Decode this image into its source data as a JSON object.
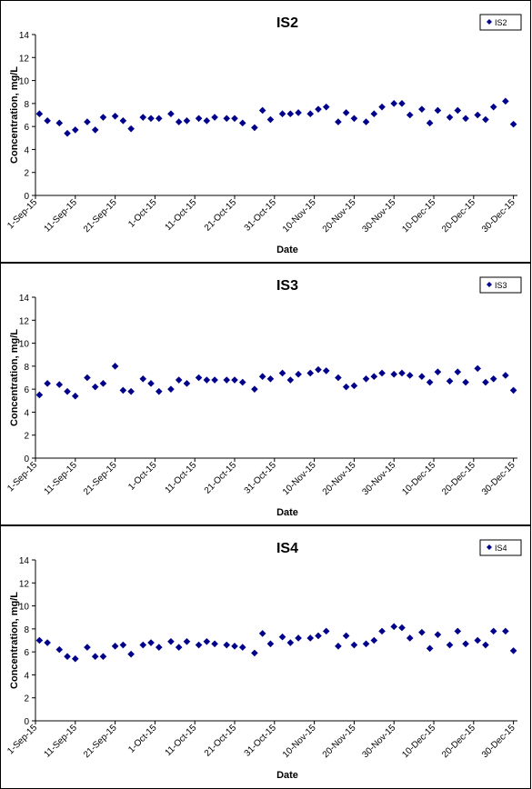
{
  "chart_data": [
    {
      "type": "scatter",
      "title": "IS2",
      "xlabel": "Date",
      "ylabel": "Concentration, mg/L",
      "ylim": [
        0,
        14
      ],
      "yticks": [
        "0",
        "2",
        "4",
        "6",
        "8",
        "10",
        "12",
        "14"
      ],
      "xlim": [
        "2015-09-01",
        "2015-12-31"
      ],
      "xticks": [
        "1-Sep-15",
        "11-Sep-15",
        "21-Sep-15",
        "1-Oct-15",
        "11-Oct-15",
        "21-Oct-15",
        "31-Oct-15",
        "10-Nov-15",
        "20-Nov-15",
        "30-Nov-15",
        "10-Dec-15",
        "20-Dec-15",
        "30-Dec-15"
      ],
      "legend_position": "top-right",
      "series": [
        {
          "name": "IS2",
          "color": "#00008B",
          "marker": "diamond",
          "points": [
            [
              "2015-09-02",
              7.1
            ],
            [
              "2015-09-04",
              6.5
            ],
            [
              "2015-09-07",
              6.3
            ],
            [
              "2015-09-09",
              5.4
            ],
            [
              "2015-09-11",
              5.7
            ],
            [
              "2015-09-14",
              6.4
            ],
            [
              "2015-09-16",
              5.7
            ],
            [
              "2015-09-18",
              6.8
            ],
            [
              "2015-09-21",
              6.9
            ],
            [
              "2015-09-23",
              6.5
            ],
            [
              "2015-09-25",
              5.8
            ],
            [
              "2015-09-28",
              6.8
            ],
            [
              "2015-09-30",
              6.7
            ],
            [
              "2015-10-02",
              6.7
            ],
            [
              "2015-10-05",
              7.1
            ],
            [
              "2015-10-07",
              6.4
            ],
            [
              "2015-10-09",
              6.5
            ],
            [
              "2015-10-12",
              6.7
            ],
            [
              "2015-10-14",
              6.5
            ],
            [
              "2015-10-16",
              6.8
            ],
            [
              "2015-10-19",
              6.7
            ],
            [
              "2015-10-21",
              6.7
            ],
            [
              "2015-10-23",
              6.3
            ],
            [
              "2015-10-26",
              5.9
            ],
            [
              "2015-10-28",
              7.4
            ],
            [
              "2015-10-30",
              6.6
            ],
            [
              "2015-11-02",
              7.1
            ],
            [
              "2015-11-04",
              7.1
            ],
            [
              "2015-11-06",
              7.2
            ],
            [
              "2015-11-09",
              7.1
            ],
            [
              "2015-11-11",
              7.5
            ],
            [
              "2015-11-13",
              7.7
            ],
            [
              "2015-11-16",
              6.4
            ],
            [
              "2015-11-18",
              7.2
            ],
            [
              "2015-11-20",
              6.7
            ],
            [
              "2015-11-23",
              6.4
            ],
            [
              "2015-11-25",
              7.1
            ],
            [
              "2015-11-27",
              7.7
            ],
            [
              "2015-11-30",
              8.0
            ],
            [
              "2015-12-02",
              8.0
            ],
            [
              "2015-12-04",
              7.0
            ],
            [
              "2015-12-07",
              7.5
            ],
            [
              "2015-12-09",
              6.3
            ],
            [
              "2015-12-11",
              7.4
            ],
            [
              "2015-12-14",
              6.8
            ],
            [
              "2015-12-16",
              7.4
            ],
            [
              "2015-12-18",
              6.7
            ],
            [
              "2015-12-21",
              7.0
            ],
            [
              "2015-12-23",
              6.6
            ],
            [
              "2015-12-25",
              7.7
            ],
            [
              "2015-12-28",
              8.2
            ],
            [
              "2015-12-30",
              6.2
            ]
          ]
        }
      ]
    },
    {
      "type": "scatter",
      "title": "IS3",
      "xlabel": "Date",
      "ylabel": "Concentration, mg/L",
      "ylim": [
        0,
        14
      ],
      "yticks": [
        "0",
        "2",
        "4",
        "6",
        "8",
        "10",
        "12",
        "14"
      ],
      "xlim": [
        "2015-09-01",
        "2015-12-31"
      ],
      "xticks": [
        "1-Sep-15",
        "11-Sep-15",
        "21-Sep-15",
        "1-Oct-15",
        "11-Oct-15",
        "21-Oct-15",
        "31-Oct-15",
        "10-Nov-15",
        "20-Nov-15",
        "30-Nov-15",
        "10-Dec-15",
        "20-Dec-15",
        "30-Dec-15"
      ],
      "legend_position": "top-right",
      "series": [
        {
          "name": "IS3",
          "color": "#00008B",
          "marker": "diamond",
          "points": [
            [
              "2015-09-02",
              5.5
            ],
            [
              "2015-09-04",
              6.5
            ],
            [
              "2015-09-07",
              6.4
            ],
            [
              "2015-09-09",
              5.8
            ],
            [
              "2015-09-11",
              5.4
            ],
            [
              "2015-09-14",
              7.0
            ],
            [
              "2015-09-16",
              6.2
            ],
            [
              "2015-09-18",
              6.5
            ],
            [
              "2015-09-21",
              8.0
            ],
            [
              "2015-09-23",
              5.9
            ],
            [
              "2015-09-25",
              5.8
            ],
            [
              "2015-09-28",
              6.9
            ],
            [
              "2015-09-30",
              6.5
            ],
            [
              "2015-10-02",
              5.8
            ],
            [
              "2015-10-05",
              6.0
            ],
            [
              "2015-10-07",
              6.8
            ],
            [
              "2015-10-09",
              6.5
            ],
            [
              "2015-10-12",
              7.0
            ],
            [
              "2015-10-14",
              6.8
            ],
            [
              "2015-10-16",
              6.8
            ],
            [
              "2015-10-19",
              6.8
            ],
            [
              "2015-10-21",
              6.8
            ],
            [
              "2015-10-23",
              6.6
            ],
            [
              "2015-10-26",
              6.0
            ],
            [
              "2015-10-28",
              7.1
            ],
            [
              "2015-10-30",
              6.9
            ],
            [
              "2015-11-02",
              7.4
            ],
            [
              "2015-11-04",
              6.8
            ],
            [
              "2015-11-06",
              7.3
            ],
            [
              "2015-11-09",
              7.4
            ],
            [
              "2015-11-11",
              7.7
            ],
            [
              "2015-11-13",
              7.6
            ],
            [
              "2015-11-16",
              7.0
            ],
            [
              "2015-11-18",
              6.2
            ],
            [
              "2015-11-20",
              6.3
            ],
            [
              "2015-11-23",
              6.9
            ],
            [
              "2015-11-25",
              7.1
            ],
            [
              "2015-11-27",
              7.4
            ],
            [
              "2015-11-30",
              7.3
            ],
            [
              "2015-12-02",
              7.4
            ],
            [
              "2015-12-04",
              7.2
            ],
            [
              "2015-12-07",
              7.1
            ],
            [
              "2015-12-09",
              6.6
            ],
            [
              "2015-12-11",
              7.5
            ],
            [
              "2015-12-14",
              6.7
            ],
            [
              "2015-12-16",
              7.5
            ],
            [
              "2015-12-18",
              6.6
            ],
            [
              "2015-12-21",
              7.8
            ],
            [
              "2015-12-23",
              6.6
            ],
            [
              "2015-12-25",
              6.9
            ],
            [
              "2015-12-28",
              7.2
            ],
            [
              "2015-12-30",
              5.9
            ]
          ]
        }
      ]
    },
    {
      "type": "scatter",
      "title": "IS4",
      "xlabel": "Date",
      "ylabel": "Concentration, mg/L",
      "ylim": [
        0,
        14
      ],
      "yticks": [
        "0",
        "2",
        "4",
        "6",
        "8",
        "10",
        "12",
        "14"
      ],
      "xlim": [
        "2015-09-01",
        "2015-12-31"
      ],
      "xticks": [
        "1-Sep-15",
        "11-Sep-15",
        "21-Sep-15",
        "1-Oct-15",
        "11-Oct-15",
        "21-Oct-15",
        "31-Oct-15",
        "10-Nov-15",
        "20-Nov-15",
        "30-Nov-15",
        "10-Dec-15",
        "20-Dec-15",
        "30-Dec-15"
      ],
      "legend_position": "top-right",
      "series": [
        {
          "name": "IS4",
          "color": "#00008B",
          "marker": "diamond",
          "points": [
            [
              "2015-09-02",
              7.0
            ],
            [
              "2015-09-04",
              6.8
            ],
            [
              "2015-09-07",
              6.2
            ],
            [
              "2015-09-09",
              5.6
            ],
            [
              "2015-09-11",
              5.4
            ],
            [
              "2015-09-14",
              6.4
            ],
            [
              "2015-09-16",
              5.6
            ],
            [
              "2015-09-18",
              5.6
            ],
            [
              "2015-09-21",
              6.5
            ],
            [
              "2015-09-23",
              6.6
            ],
            [
              "2015-09-25",
              5.8
            ],
            [
              "2015-09-28",
              6.6
            ],
            [
              "2015-09-30",
              6.8
            ],
            [
              "2015-10-02",
              6.4
            ],
            [
              "2015-10-05",
              6.9
            ],
            [
              "2015-10-07",
              6.4
            ],
            [
              "2015-10-09",
              6.9
            ],
            [
              "2015-10-12",
              6.6
            ],
            [
              "2015-10-14",
              6.9
            ],
            [
              "2015-10-16",
              6.7
            ],
            [
              "2015-10-19",
              6.6
            ],
            [
              "2015-10-21",
              6.5
            ],
            [
              "2015-10-23",
              6.4
            ],
            [
              "2015-10-26",
              5.9
            ],
            [
              "2015-10-28",
              7.6
            ],
            [
              "2015-10-30",
              6.7
            ],
            [
              "2015-11-02",
              7.3
            ],
            [
              "2015-11-04",
              6.8
            ],
            [
              "2015-11-06",
              7.2
            ],
            [
              "2015-11-09",
              7.2
            ],
            [
              "2015-11-11",
              7.4
            ],
            [
              "2015-11-13",
              7.8
            ],
            [
              "2015-11-16",
              6.5
            ],
            [
              "2015-11-18",
              7.4
            ],
            [
              "2015-11-20",
              6.6
            ],
            [
              "2015-11-23",
              6.7
            ],
            [
              "2015-11-25",
              7.0
            ],
            [
              "2015-11-27",
              7.8
            ],
            [
              "2015-11-30",
              8.2
            ],
            [
              "2015-12-02",
              8.1
            ],
            [
              "2015-12-04",
              7.2
            ],
            [
              "2015-12-07",
              7.7
            ],
            [
              "2015-12-09",
              6.3
            ],
            [
              "2015-12-11",
              7.5
            ],
            [
              "2015-12-14",
              6.6
            ],
            [
              "2015-12-16",
              7.8
            ],
            [
              "2015-12-18",
              6.7
            ],
            [
              "2015-12-21",
              7.0
            ],
            [
              "2015-12-23",
              6.6
            ],
            [
              "2015-12-25",
              7.8
            ],
            [
              "2015-12-28",
              7.8
            ],
            [
              "2015-12-30",
              6.1
            ]
          ]
        }
      ]
    }
  ]
}
